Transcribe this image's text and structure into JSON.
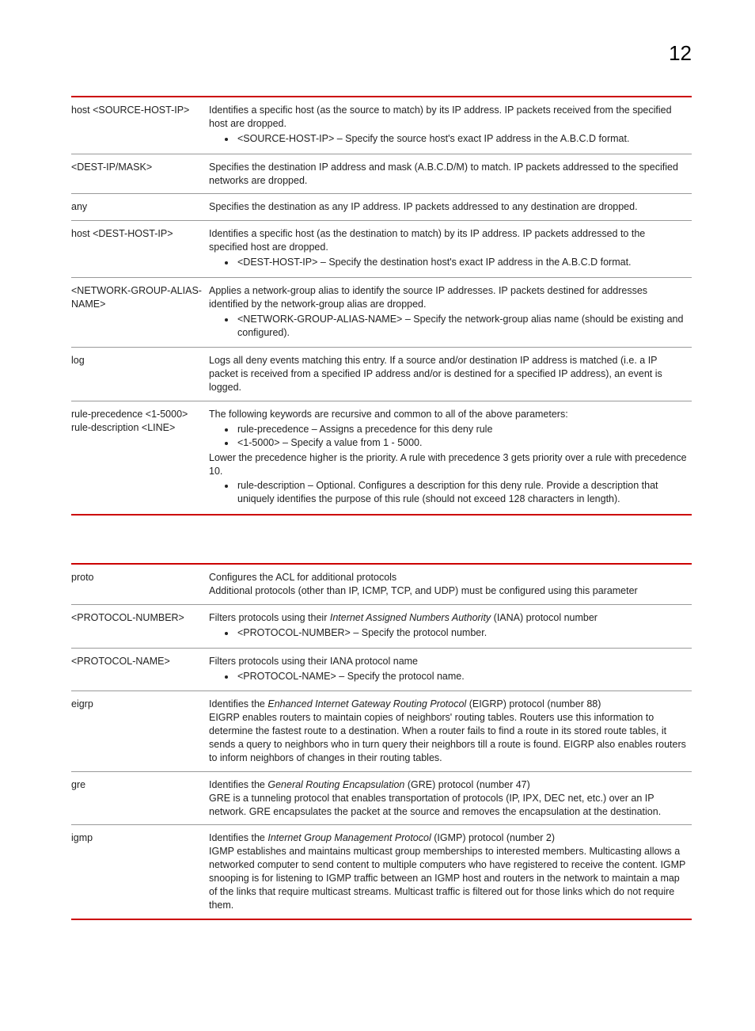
{
  "page_number": "12",
  "colors": {
    "accent": "#c00",
    "border": "#999"
  },
  "table1": {
    "rows": [
      {
        "param": "host <SOURCE-HOST-IP>",
        "desc_pre": "Identifies a specific host (as the source to match) by its IP address. IP packets received from the specified host are dropped.",
        "bullets": [
          "<SOURCE-HOST-IP> – Specify the source host's exact IP address in the A.B.C.D format."
        ]
      },
      {
        "param": "<DEST-IP/MASK>",
        "desc_pre": "Specifies the destination IP address and mask (A.B.C.D/M) to match. IP packets addressed to the specified networks are dropped."
      },
      {
        "param": "any",
        "desc_pre": "Specifies the destination as any IP address. IP packets addressed to any destination are dropped."
      },
      {
        "param": "host <DEST-HOST-IP>",
        "desc_pre": "Identifies a specific host (as the destination to match) by its IP address. IP packets addressed to the specified host are dropped.",
        "bullets": [
          "<DEST-HOST-IP> – Specify the destination host's exact IP address in the A.B.C.D format."
        ]
      },
      {
        "param": "<NETWORK-GROUP-ALIAS-NAME>",
        "desc_pre": "Applies a network-group alias to identify the source IP addresses. IP packets destined for addresses identified by the network-group alias are dropped.",
        "bullets": [
          "<NETWORK-GROUP-ALIAS-NAME> – Specify the network-group alias name (should be existing and configured)."
        ]
      },
      {
        "param": "log",
        "desc_pre": "Logs all deny events matching this entry. If a source and/or destination IP address is matched (i.e. a IP packet is received from a specified IP address and/or is destined for a specified IP address), an event is logged."
      },
      {
        "param": "rule-precedence <1-5000> rule-description <LINE>",
        "desc_pre": "The following keywords are recursive and common to all of the above parameters:",
        "bullets": [
          "rule-precedence – Assigns a precedence for this deny rule",
          "<1-5000> – Specify a value from 1 - 5000."
        ],
        "desc_mid": "Lower the precedence higher is the priority. A rule with precedence 3 gets priority over a rule with precedence 10.",
        "bullets2": [
          "rule-description – Optional. Configures a description for this deny rule. Provide a description that uniquely identifies the purpose of this rule (should not exceed 128 characters in length)."
        ]
      }
    ]
  },
  "table2": {
    "rows": [
      {
        "param": "proto",
        "lines": [
          "Configures the ACL for additional protocols",
          "Additional protocols (other than IP, ICMP, TCP, and UDP) must be configured using this parameter"
        ]
      },
      {
        "param": "<PROTOCOL-NUMBER>",
        "lines_html": "Filters protocols using their <span class=\"ital\">Internet Assigned Numbers Authority</span> (IANA) protocol number",
        "bullets": [
          "<PROTOCOL-NUMBER> – Specify the protocol number."
        ]
      },
      {
        "param": "<PROTOCOL-NAME>",
        "lines": [
          "Filters protocols using their IANA protocol name"
        ],
        "bullets": [
          "<PROTOCOL-NAME> – Specify the protocol name."
        ]
      },
      {
        "param": "eigrp",
        "lines_html": "Identifies the <span class=\"ital\">Enhanced Internet Gateway Routing Protocol</span> (EIGRP) protocol (number 88)",
        "lines2": [
          "EIGRP enables routers to maintain copies of neighbors' routing tables. Routers use this information to determine the fastest route to a destination. When a router fails to find a route in its stored route tables, it sends a query to neighbors who in turn query their neighbors till a route is found. EIGRP also enables routers to inform neighbors of changes in their routing tables."
        ]
      },
      {
        "param": "gre",
        "lines_html": "Identifies the <span class=\"ital\">General Routing Encapsulation</span> (GRE) protocol (number 47)",
        "lines2": [
          "GRE is a tunneling protocol that enables transportation of protocols (IP, IPX, DEC net, etc.) over an IP network. GRE encapsulates the packet at the source and removes the encapsulation at the destination."
        ]
      },
      {
        "param": "igmp",
        "lines_html": "Identifies the <span class=\"ital\">Internet Group Management Protocol</span> (IGMP) protocol (number 2)",
        "lines2": [
          "IGMP establishes and maintains multicast group memberships to interested members. Multicasting allows a networked computer to send content to multiple computers who have registered to receive the content. IGMP snooping is for listening to IGMP traffic between an IGMP host and routers in the network to maintain a map of the links that require multicast streams. Multicast traffic is filtered out for those links which do not require them."
        ]
      }
    ]
  }
}
